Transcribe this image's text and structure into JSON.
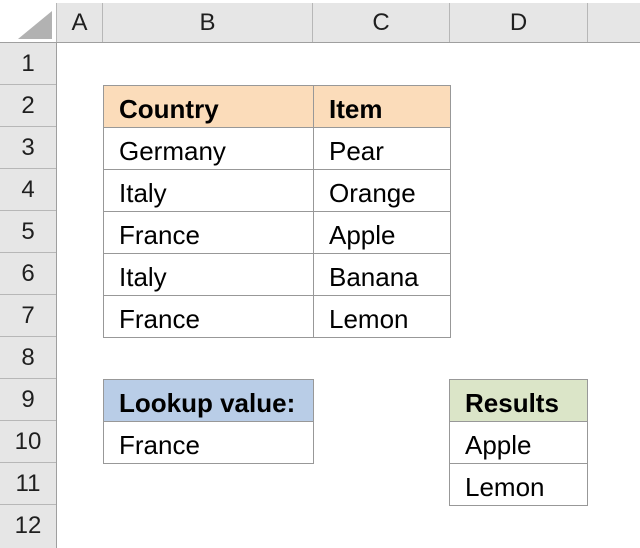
{
  "sheet": {
    "column_headers": [
      "A",
      "B",
      "C",
      "D",
      ""
    ],
    "row_headers": [
      "1",
      "2",
      "3",
      "4",
      "5",
      "6",
      "7",
      "8",
      "9",
      "10",
      "11",
      "12"
    ]
  },
  "main_table": {
    "headers": [
      "Country",
      "Item"
    ],
    "rows": [
      [
        "Germany",
        "Pear"
      ],
      [
        "Italy",
        "Orange"
      ],
      [
        "France",
        "Apple"
      ],
      [
        "Italy",
        "Banana"
      ],
      [
        "France",
        "Lemon"
      ]
    ]
  },
  "lookup_table": {
    "header": "Lookup value:",
    "value": "France"
  },
  "results_table": {
    "header": "Results",
    "values": [
      "Apple",
      "Lemon"
    ]
  },
  "colors": {
    "header_bg": "#e6e6e6",
    "table_header_orange": "#fbdcba",
    "lookup_header_blue": "#b9cde7",
    "results_header_green": "#dbe5c8",
    "cell_border": "#989898",
    "triangle_gray": "#b2b2b2"
  }
}
